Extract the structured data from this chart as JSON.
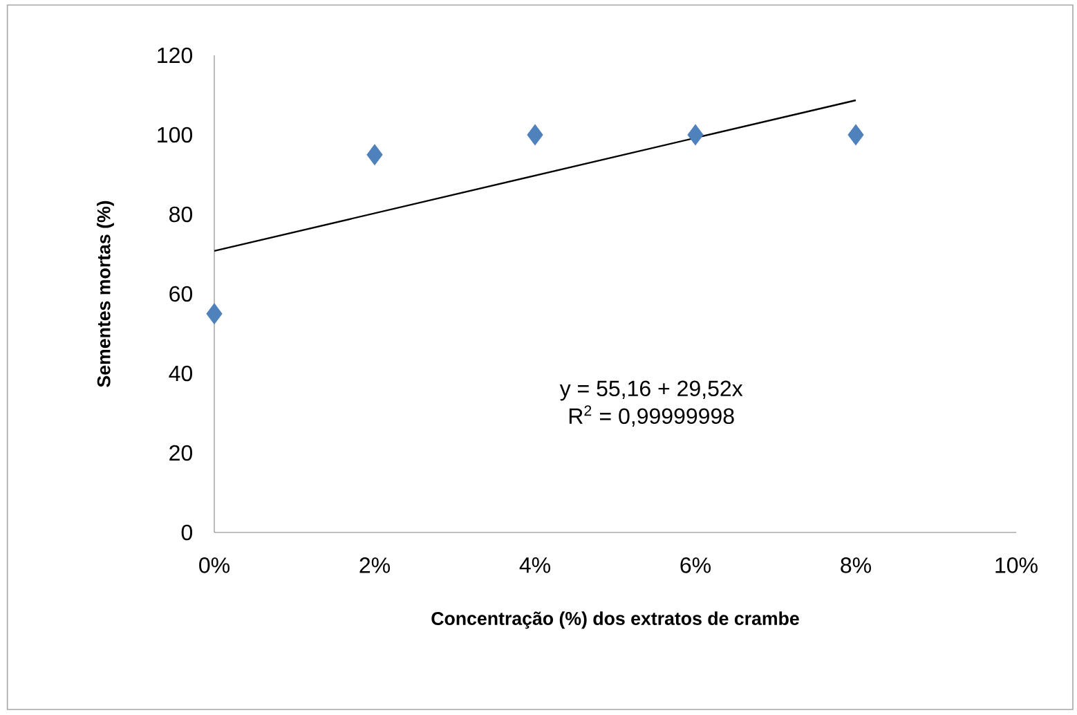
{
  "chart_data": {
    "type": "scatter",
    "xlabel": "Concentração (%) dos extratos de crambe",
    "ylabel": "Sementes mortas (%)",
    "x": [
      0,
      2,
      4,
      6,
      8
    ],
    "series": [
      {
        "color": "#4f81bd",
        "marker": "diamond",
        "values": [
          55,
          95,
          100,
          100,
          100
        ]
      },
      {
        "type": "line",
        "color": "#000000",
        "marker": "none",
        "x": [
          0,
          8
        ],
        "values": [
          70.8,
          108.7
        ]
      }
    ],
    "xlim": [
      0,
      10
    ],
    "xticks": [
      {
        "value": 0,
        "label": "0%"
      },
      {
        "value": 2,
        "label": "2%"
      },
      {
        "value": 4,
        "label": "4%"
      },
      {
        "value": 6,
        "label": "6%"
      },
      {
        "value": 8,
        "label": "8%"
      },
      {
        "value": 10,
        "label": "10%"
      }
    ],
    "ylim": [
      0,
      120
    ],
    "yticks": [
      0,
      20,
      40,
      60,
      80,
      100,
      120
    ],
    "annotations": [
      "y = 55,16 + 29,52x",
      "R$^{2}$ = 0,99999998"
    ]
  }
}
